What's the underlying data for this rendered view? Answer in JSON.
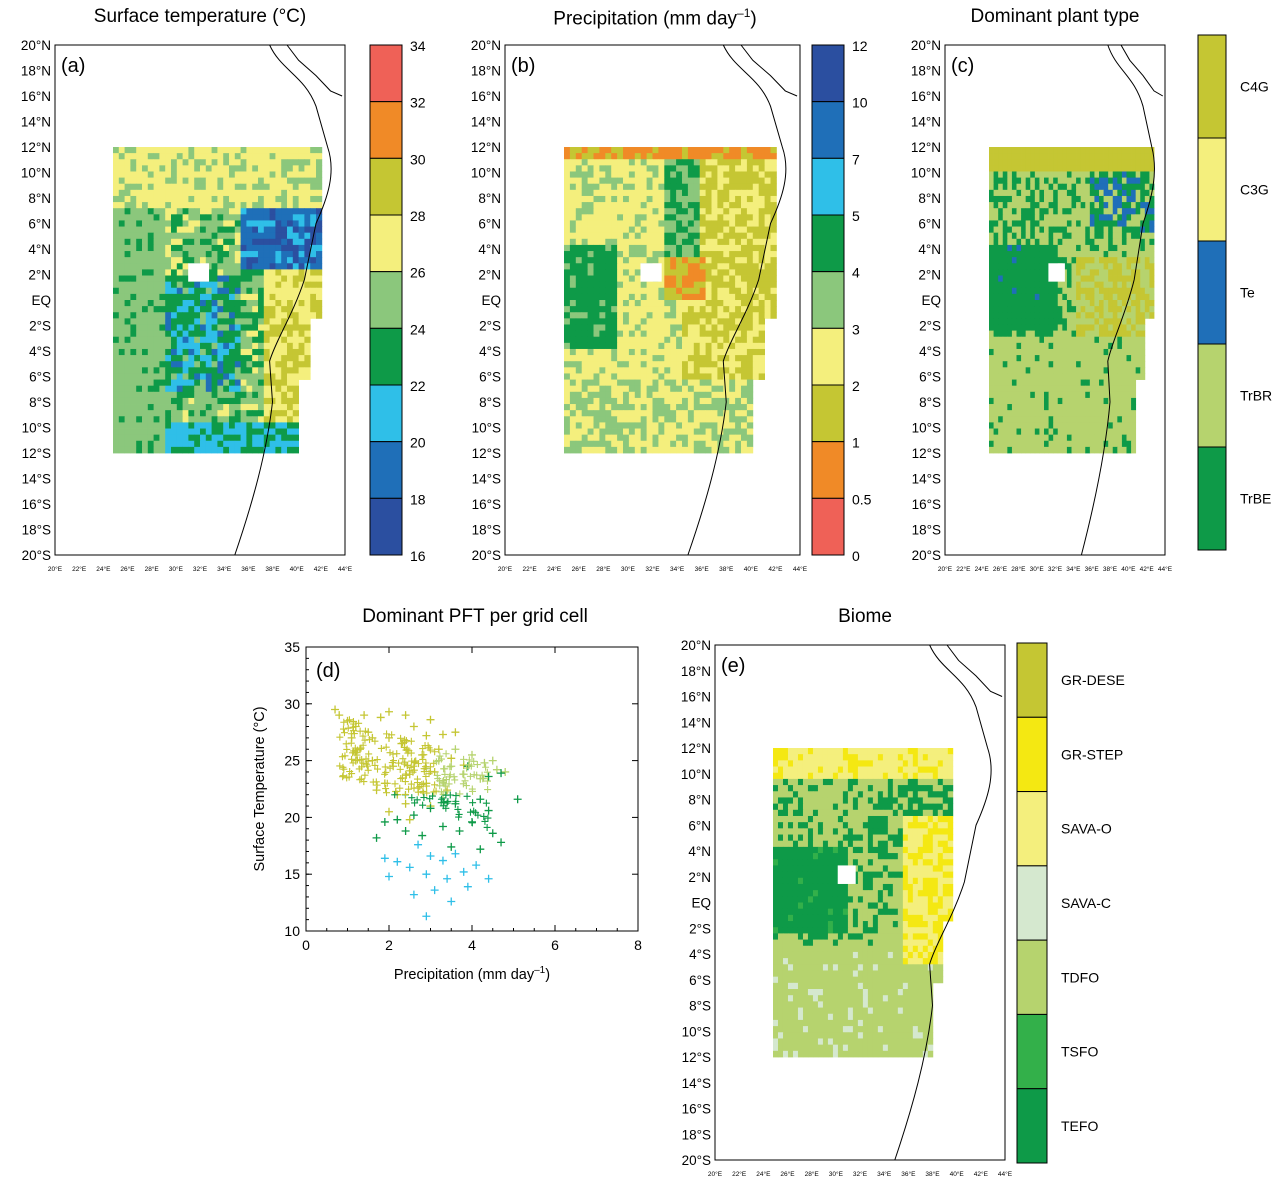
{
  "lat_labels": [
    "20°N",
    "18°N",
    "16°N",
    "14°N",
    "12°N",
    "10°N",
    "8°N",
    "6°N",
    "4°N",
    "2°N",
    "EQ",
    "2°S",
    "4°S",
    "6°S",
    "8°S",
    "10°S",
    "12°S",
    "14°S",
    "16°S",
    "18°S",
    "20°S"
  ],
  "lon_labels": [
    "20°E",
    "22°E",
    "24°E",
    "26°E",
    "28°E",
    "30°E",
    "32°E",
    "34°E",
    "36°E",
    "38°E",
    "40°E",
    "42°E",
    "44°E"
  ],
  "panels": {
    "a": {
      "title": "Surface temperature (°C)",
      "letter": "(a)",
      "colorbar_ticks": [
        "34",
        "32",
        "30",
        "28",
        "26",
        "24",
        "22",
        "20",
        "18",
        "16"
      ],
      "colorbar_colors": [
        "#ef6157",
        "#f08a27",
        "#c5c633",
        "#f4ef7d",
        "#8bc77c",
        "#0e9a48",
        "#2fbfe8",
        "#1f6fb8",
        "#2b4fa0"
      ]
    },
    "b": {
      "title": "Precipitation (mm day",
      "title_sup": "–1",
      "title_end": ")",
      "letter": "(b)",
      "colorbar_ticks": [
        "12",
        "10",
        "7",
        "5",
        "4",
        "3",
        "2",
        "1",
        "0.5",
        "0"
      ],
      "colorbar_colors": [
        "#2b4fa0",
        "#1f6fb8",
        "#2fbfe8",
        "#0e9a48",
        "#8bc77c",
        "#f4ef7d",
        "#c5c633",
        "#f08a27",
        "#ef6157"
      ]
    },
    "c": {
      "title": "Dominant plant type",
      "letter": "(c)",
      "categories": [
        "C4G",
        "C3G",
        "Te",
        "TrBR",
        "TrBE"
      ],
      "colorbar_colors": [
        "#c5c633",
        "#f4ef7d",
        "#1f6fb8",
        "#b6d36e",
        "#0e9a48"
      ]
    },
    "d": {
      "title": "Dominant PFT per grid cell",
      "letter": "(d)",
      "xlabel": "Precipitation (mm day",
      "xlabel_sup": "–1",
      "xlabel_end": ")",
      "ylabel": "Surface Temperature (°C)"
    },
    "e": {
      "title": "Biome",
      "letter": "(e)",
      "categories": [
        "GR-DESE",
        "GR-STEP",
        "SAVA-O",
        "SAVA-C",
        "TDFO",
        "TSFO",
        "TEFO"
      ],
      "colorbar_colors": [
        "#c5c633",
        "#f4e812",
        "#f4ef7d",
        "#d5e8cf",
        "#b6d36e",
        "#33b04a",
        "#0e9a48"
      ]
    }
  },
  "chart_data": {
    "type": "scatter",
    "title": "Dominant PFT per grid cell",
    "xlabel": "Precipitation (mm day–1)",
    "ylabel": "Surface Temperature (°C)",
    "xlim": [
      0,
      8
    ],
    "ylim": [
      10,
      35
    ],
    "xticks": [
      "0",
      "2",
      "4",
      "6",
      "8"
    ],
    "yticks": [
      "10",
      "15",
      "20",
      "25",
      "30",
      "35"
    ],
    "series": [
      {
        "color": "#c5c633",
        "points": [
          [
            0.8,
            29
          ],
          [
            1.0,
            28.5
          ],
          [
            1.2,
            28
          ],
          [
            1.5,
            27.5
          ],
          [
            1.8,
            28.8
          ],
          [
            2.0,
            27
          ],
          [
            2.3,
            26.5
          ],
          [
            2.6,
            28
          ],
          [
            2.9,
            27.2
          ],
          [
            3.2,
            26
          ],
          [
            1.3,
            26
          ],
          [
            1.6,
            25
          ],
          [
            2.1,
            24.5
          ],
          [
            2.5,
            23.8
          ],
          [
            2.8,
            25.5
          ],
          [
            3.1,
            24
          ],
          [
            3.5,
            25.2
          ],
          [
            3.8,
            24.6
          ],
          [
            1.9,
            23
          ],
          [
            2.2,
            22
          ],
          [
            2.4,
            21.2
          ],
          [
            2.7,
            22.6
          ],
          [
            3.0,
            21
          ],
          [
            3.4,
            22.4
          ],
          [
            1.1,
            27
          ],
          [
            1.4,
            29
          ],
          [
            2.0,
            29.3
          ],
          [
            2.4,
            29
          ],
          [
            3.0,
            28.6
          ],
          [
            3.6,
            27.5
          ],
          [
            1.7,
            22.4
          ],
          [
            2.0,
            20.5
          ],
          [
            2.5,
            19.8
          ],
          [
            0.7,
            29.5
          ],
          [
            1.2,
            25
          ],
          [
            1.6,
            27
          ],
          [
            2.9,
            23
          ],
          [
            3.3,
            27.3
          ]
        ]
      },
      {
        "color": "#b6d36e",
        "points": [
          [
            3.6,
            26
          ],
          [
            4.0,
            25.5
          ],
          [
            4.3,
            24.8
          ],
          [
            4.6,
            24.2
          ],
          [
            3.2,
            25
          ],
          [
            3.8,
            23.8
          ],
          [
            4.2,
            23.4
          ],
          [
            2.9,
            24.3
          ],
          [
            3.5,
            24.5
          ],
          [
            4.5,
            25
          ],
          [
            3.3,
            23.1
          ],
          [
            4.8,
            24
          ]
        ]
      },
      {
        "color": "#0e9a48",
        "points": [
          [
            3.9,
            24.5
          ],
          [
            4.4,
            23.6
          ],
          [
            4.7,
            23.9
          ],
          [
            5.1,
            21.6
          ],
          [
            4.2,
            21.6
          ],
          [
            3.6,
            21.2
          ],
          [
            3.0,
            20.8
          ],
          [
            2.6,
            20.2
          ],
          [
            2.2,
            19.8
          ],
          [
            1.9,
            19.6
          ],
          [
            3.3,
            19.2
          ],
          [
            3.7,
            18.8
          ],
          [
            4.0,
            19.6
          ],
          [
            4.5,
            18.6
          ],
          [
            2.8,
            18.4
          ],
          [
            3.5,
            17.4
          ],
          [
            4.2,
            17.2
          ],
          [
            2.4,
            18.8
          ],
          [
            4.7,
            17.8
          ],
          [
            1.7,
            18.2
          ],
          [
            4.4,
            20.6
          ]
        ]
      },
      {
        "color": "#2fbfe8",
        "points": [
          [
            2.7,
            17.6
          ],
          [
            3.0,
            16.6
          ],
          [
            3.3,
            16.2
          ],
          [
            3.6,
            16.8
          ],
          [
            2.5,
            15.6
          ],
          [
            2.9,
            15
          ],
          [
            3.4,
            14.6
          ],
          [
            3.8,
            15.2
          ],
          [
            4.1,
            15.8
          ],
          [
            2.2,
            16.1
          ],
          [
            2.0,
            14.8
          ],
          [
            3.1,
            13.6
          ],
          [
            2.6,
            13.2
          ],
          [
            3.5,
            12.6
          ],
          [
            2.9,
            11.3
          ],
          [
            4.4,
            14.6
          ],
          [
            1.9,
            16.4
          ],
          [
            3.9,
            13.9
          ]
        ]
      }
    ],
    "plot_labels": [
      "PFT"
    ]
  }
}
